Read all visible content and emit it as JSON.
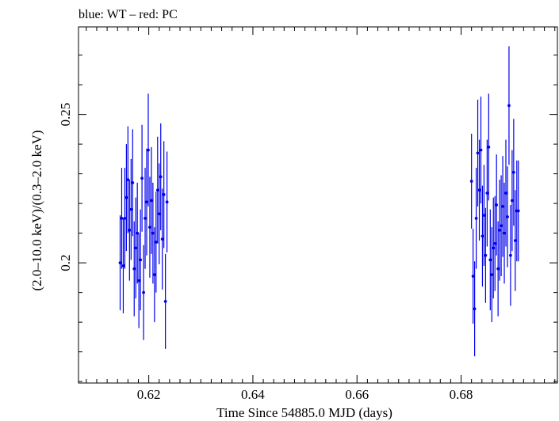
{
  "chart_data": {
    "type": "scatter",
    "title": "blue: WT – red: PC",
    "xlabel": "Time Since 54885.0 MJD (days)",
    "ylabel": "(2.0–10.0 keV)/(0.3–2.0 keV)",
    "xlim": [
      0.6065,
      0.6985
    ],
    "ylim": [
      0.1595,
      0.2795
    ],
    "x_ticks": [
      0.62,
      0.64,
      0.66,
      0.68
    ],
    "x_tick_labels": [
      "0.62",
      "0.64",
      "0.66",
      "0.68"
    ],
    "y_ticks": [
      0.2,
      0.25
    ],
    "y_tick_labels": [
      "0.2",
      "0.25"
    ],
    "series": [
      {
        "name": "WT",
        "color": "#0000ee",
        "x": [
          0.6145,
          0.6148,
          0.6151,
          0.6154,
          0.6157,
          0.616,
          0.6163,
          0.6166,
          0.6169,
          0.6172,
          0.6175,
          0.6178,
          0.6181,
          0.6184,
          0.6187,
          0.619,
          0.6193,
          0.6196,
          0.6199,
          0.6202,
          0.6205,
          0.6208,
          0.6211,
          0.6214,
          0.6217,
          0.622,
          0.6223,
          0.6226,
          0.6229,
          0.6232,
          0.6235
        ],
        "y": [
          0.2,
          0.215,
          0.199,
          0.215,
          0.222,
          0.228,
          0.211,
          0.218,
          0.227,
          0.198,
          0.205,
          0.21,
          0.194,
          0.201,
          0.2285,
          0.19,
          0.215,
          0.2205,
          0.238,
          0.212,
          0.221,
          0.21,
          0.196,
          0.207,
          0.2245,
          0.2165,
          0.229,
          0.208,
          0.223,
          0.187,
          0.2205
        ],
        "err": [
          0.016,
          0.017,
          0.016,
          0.017,
          0.018,
          0.018,
          0.017,
          0.017,
          0.018,
          0.016,
          0.017,
          0.017,
          0.016,
          0.017,
          0.018,
          0.016,
          0.017,
          0.018,
          0.019,
          0.017,
          0.018,
          0.017,
          0.016,
          0.017,
          0.018,
          0.017,
          0.018,
          0.017,
          0.018,
          0.016,
          0.017
        ]
      },
      {
        "name": "WT",
        "color": "#0000ee",
        "x": [
          0.682,
          0.6823,
          0.6826,
          0.6829,
          0.6832,
          0.6835,
          0.6838,
          0.6841,
          0.6844,
          0.6847,
          0.685,
          0.6853,
          0.6856,
          0.6859,
          0.6862,
          0.6865,
          0.6868,
          0.6871,
          0.6874,
          0.6877,
          0.688,
          0.6883,
          0.6886,
          0.6889,
          0.6892,
          0.6895,
          0.6898,
          0.6901,
          0.6904,
          0.6907,
          0.691
        ],
        "y": [
          0.2275,
          0.1955,
          0.1845,
          0.215,
          0.237,
          0.2245,
          0.238,
          0.209,
          0.216,
          0.2025,
          0.2235,
          0.239,
          0.201,
          0.196,
          0.205,
          0.2065,
          0.2195,
          0.198,
          0.211,
          0.2125,
          0.219,
          0.21,
          0.2235,
          0.2155,
          0.253,
          0.2025,
          0.221,
          0.2305,
          0.2075,
          0.2175,
          0.2175
        ],
        "err": [
          0.016,
          0.016,
          0.016,
          0.017,
          0.018,
          0.017,
          0.018,
          0.017,
          0.017,
          0.016,
          0.018,
          0.018,
          0.017,
          0.016,
          0.017,
          0.016,
          0.017,
          0.016,
          0.017,
          0.017,
          0.017,
          0.017,
          0.018,
          0.017,
          0.02,
          0.017,
          0.017,
          0.018,
          0.017,
          0.017,
          0.017
        ]
      }
    ]
  }
}
